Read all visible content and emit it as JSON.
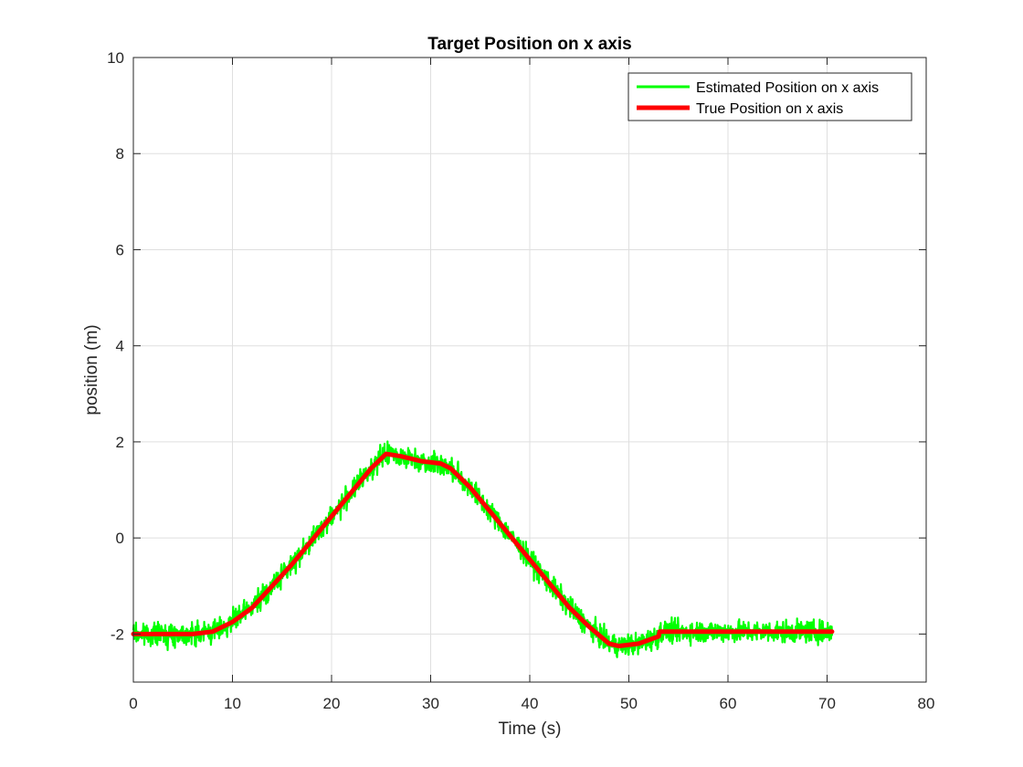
{
  "chart_data": {
    "type": "line",
    "title": "Target Position on x axis",
    "xlabel": "Time (s)",
    "ylabel": "position (m)",
    "xlim": [
      0,
      80
    ],
    "ylim": [
      -3,
      10
    ],
    "xticks": [
      0,
      10,
      20,
      30,
      40,
      50,
      60,
      70,
      80
    ],
    "yticks": [
      -2,
      0,
      2,
      4,
      6,
      8,
      10
    ],
    "grid": true,
    "legend_location": "top-right",
    "series": [
      {
        "name": "Estimated Position on x axis",
        "color": "#00ff00",
        "noise_amplitude": 0.25,
        "x": [
          0,
          2,
          4,
          6,
          8,
          10,
          12,
          14,
          16,
          18,
          20,
          22,
          24,
          25.5,
          27,
          29,
          31,
          32,
          34,
          36,
          38,
          40,
          42,
          44,
          46,
          48,
          49,
          51,
          53,
          53.1,
          55,
          60,
          65,
          70.5
        ],
        "y": [
          -2.0,
          -2.0,
          -2.0,
          -2.0,
          -1.95,
          -1.75,
          -1.45,
          -1.0,
          -0.55,
          -0.05,
          0.45,
          0.95,
          1.45,
          1.75,
          1.7,
          1.6,
          1.55,
          1.45,
          1.05,
          0.55,
          0.05,
          -0.45,
          -0.95,
          -1.45,
          -1.85,
          -2.2,
          -2.25,
          -2.2,
          -2.05,
          -1.95,
          -1.95,
          -1.95,
          -1.95,
          -1.95
        ]
      },
      {
        "name": "True Position on x axis",
        "color": "#ff0000",
        "x": [
          0,
          2,
          4,
          6,
          8,
          10,
          12,
          14,
          16,
          18,
          20,
          22,
          24,
          25.5,
          27,
          29,
          31,
          32,
          34,
          36,
          38,
          40,
          42,
          44,
          46,
          48,
          49,
          51,
          53,
          53.1,
          55,
          60,
          65,
          70.5
        ],
        "y": [
          -2.0,
          -2.0,
          -2.0,
          -2.0,
          -1.95,
          -1.75,
          -1.45,
          -1.0,
          -0.55,
          -0.05,
          0.45,
          0.95,
          1.45,
          1.75,
          1.7,
          1.6,
          1.55,
          1.45,
          1.05,
          0.55,
          0.05,
          -0.45,
          -0.95,
          -1.45,
          -1.85,
          -2.2,
          -2.25,
          -2.2,
          -2.05,
          -1.95,
          -1.95,
          -1.95,
          -1.95,
          -1.95
        ]
      }
    ]
  }
}
